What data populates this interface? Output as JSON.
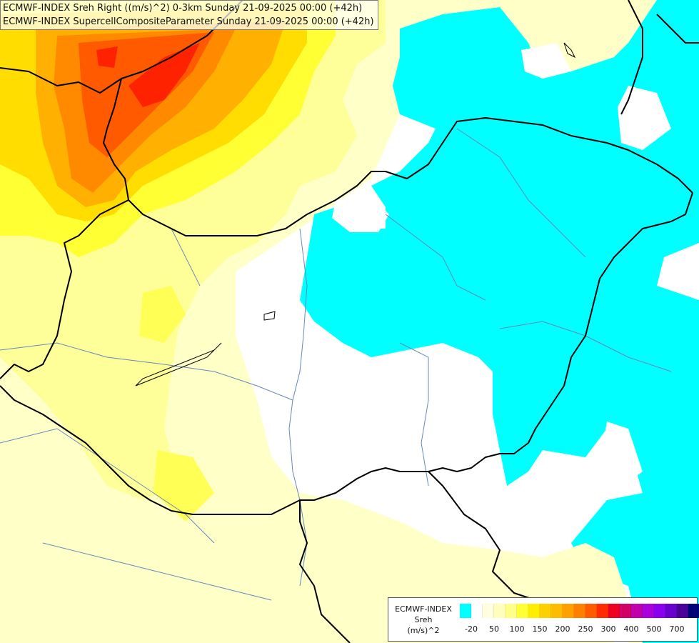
{
  "title": {
    "line1": "ECMWF-INDEX Sreh Right ((m/s)^2) 0-3km Sunday 21-09-2025 00:00 (+42h)",
    "line2": "ECMWF-INDEX SupercellCompositeParameter Sunday 21-09-2025 00:00 (+42h)"
  },
  "legend": {
    "line1": "ECMWF-INDEX",
    "line2": "Sreh",
    "line3": "(m/s)^2",
    "colors": [
      "#00ffff",
      "#ffffff",
      "#ffffdd",
      "#ffffbb",
      "#ffff88",
      "#ffff33",
      "#ffee00",
      "#ffd000",
      "#ffbb00",
      "#ffa000",
      "#ff8000",
      "#ff5a00",
      "#ff2a00",
      "#ee0022",
      "#d00066",
      "#c000aa",
      "#aa00dd",
      "#8800ee",
      "#6a00cc",
      "#4a0099",
      "#000077"
    ],
    "ticks": [
      {
        "label": "-20",
        "pos": 0
      },
      {
        "label": "50",
        "pos": 2
      },
      {
        "label": "100",
        "pos": 4
      },
      {
        "label": "150",
        "pos": 6
      },
      {
        "label": "200",
        "pos": 8
      },
      {
        "label": "250",
        "pos": 10
      },
      {
        "label": "300",
        "pos": 12
      },
      {
        "label": "400",
        "pos": 14
      },
      {
        "label": "500",
        "pos": 16
      },
      {
        "label": "700",
        "pos": 18
      }
    ]
  },
  "map_colors": {
    "cyan": "#00ffff",
    "white": "#ffffff",
    "pale_yellow": "#ffffc8",
    "light_yellow": "#ffff99",
    "yellow": "#ffff33",
    "gold": "#ffdd00",
    "orange": "#ffb000",
    "dark_orange": "#ff8a00",
    "red_orange": "#ff5a00",
    "red": "#ff2200",
    "border": "#000000",
    "river": "#6688bb"
  }
}
